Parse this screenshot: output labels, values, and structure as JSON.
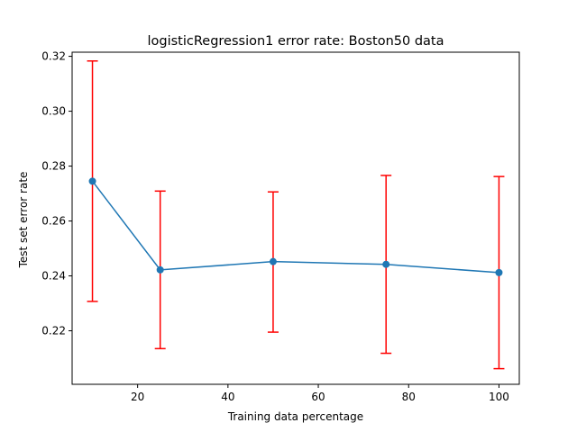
{
  "chart_data": {
    "type": "line",
    "title": "logisticRegression1 error rate: Boston50 data",
    "xlabel": "Training data percentage",
    "ylabel": "Test set error rate",
    "xlim": [
      5.5,
      104.5
    ],
    "ylim": [
      0.2005,
      0.3215
    ],
    "xticks": [
      20,
      40,
      60,
      80,
      100
    ],
    "yticks": [
      0.22,
      0.24,
      0.26,
      0.28,
      0.3,
      0.32
    ],
    "ytick_labels": [
      "0.22",
      "0.24",
      "0.26",
      "0.28",
      "0.30",
      "0.32"
    ],
    "grid": false,
    "x": [
      10,
      25,
      50,
      75,
      100
    ],
    "y": [
      0.2745,
      0.2422,
      0.2452,
      0.2442,
      0.2412
    ],
    "err_low": [
      0.2307,
      0.2135,
      0.2195,
      0.2118,
      0.2062
    ],
    "err_high": [
      0.3183,
      0.2709,
      0.2706,
      0.2766,
      0.2762
    ],
    "line_color": "#1f77b4",
    "error_color": "#ff0000"
  }
}
